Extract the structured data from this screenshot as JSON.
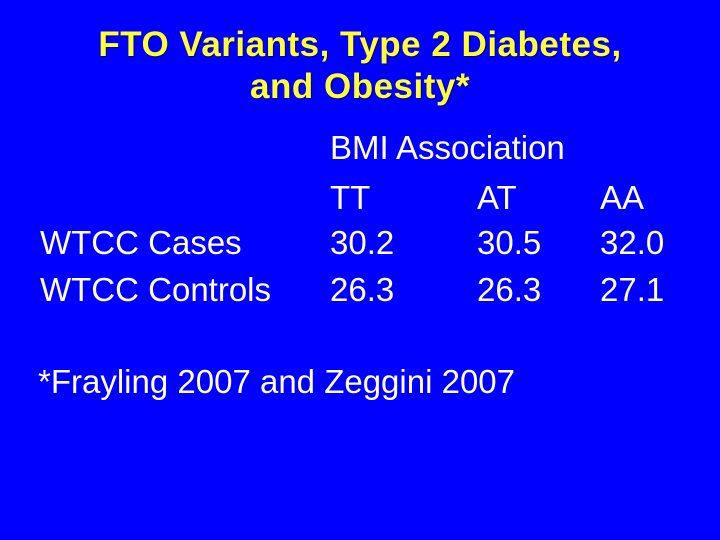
{
  "slide": {
    "title": {
      "line1": "FTO Variants, Type 2 Diabetes,",
      "line2": "and Obesity*"
    },
    "table": {
      "header": "BMI Association",
      "columns": [
        "TT",
        "AT",
        "AA"
      ],
      "rows": [
        {
          "label": "WTCC Cases",
          "values": [
            "30.2",
            "30.5",
            "32.0"
          ]
        },
        {
          "label": "WTCC Controls",
          "values": [
            "26.3",
            "26.3",
            "27.1"
          ]
        }
      ]
    },
    "footnote": "*Frayling 2007 and Zeggini 2007",
    "colors": {
      "background": "#0000FF",
      "title_text": "#FFFF33",
      "body_text": "#FFFFFF"
    }
  }
}
